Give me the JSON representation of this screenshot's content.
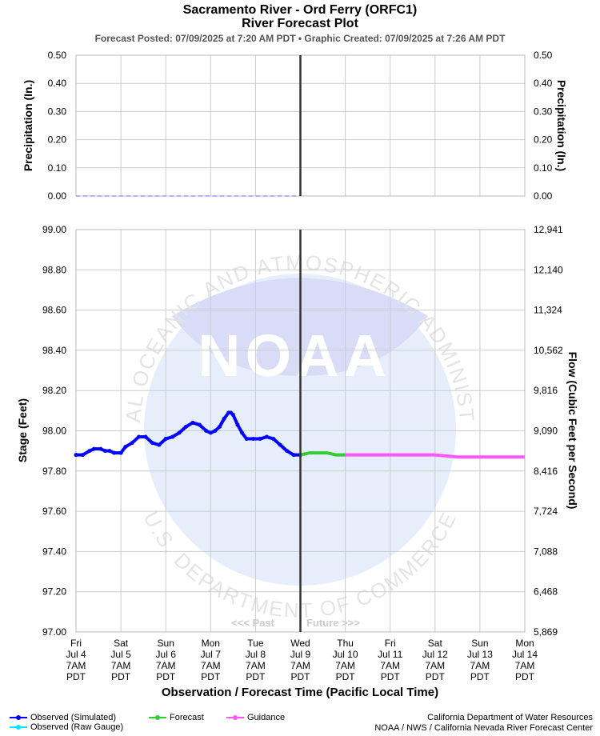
{
  "header": {
    "title": "Sacramento River - Ord Ferry (ORFC1)",
    "subtitle": "River Forecast Plot",
    "posted": "Forecast Posted: 07/09/2025 at 7:20 AM PDT  •  Graphic Created: 07/09/2025 at 7:26 AM PDT"
  },
  "watermark": {
    "label": "NOAA",
    "ring_top": "NATIONAL OCEANIC AND ATMOSPHERIC ADMINISTRATION",
    "ring_bottom": "U.S. DEPARTMENT OF COMMERCE"
  },
  "annotations": {
    "past": "<<< Past",
    "future": "Future >>>"
  },
  "legend": {
    "observed_simulated": "Observed (Simulated)",
    "observed_raw": "Observed (Raw Gauge)",
    "forecast": "Forecast",
    "guidance": "Guidance"
  },
  "credits": {
    "line1": "California Department of Water Resources",
    "line2": "NOAA / NWS / California Nevada River Forecast Center"
  },
  "colors": {
    "observed_simulated": "#0000ff",
    "observed_raw": "#00e5ff",
    "forecast": "#33cc33",
    "guidance": "#ff55ff",
    "now_line": "#333333",
    "grid": "#cccccc",
    "precip": "#9999ff"
  },
  "chart_data": [
    {
      "type": "line",
      "ylabel_left": "Precipitation (In.)",
      "ylabel_right": "Precipitation (In.)",
      "ylim": [
        0,
        0.5
      ],
      "yticks": [
        "0.00",
        "0.10",
        "0.20",
        "0.30",
        "0.40",
        "0.50"
      ],
      "series": [
        {
          "name": "Precipitation",
          "x": [
            0,
            5
          ],
          "values": [
            0,
            0
          ]
        }
      ]
    },
    {
      "type": "line",
      "xlabel": "Observation / Forecast Time (Pacific Local Time)",
      "ylabel_left": "Stage (Feet)",
      "ylabel_right": "Flow (Cubic Feet per Second)",
      "ylim": [
        97.0,
        99.0
      ],
      "xlim": [
        0,
        10
      ],
      "grid": true,
      "now_x": 5,
      "yticks_left": [
        "97.00",
        "97.20",
        "97.40",
        "97.60",
        "97.80",
        "98.00",
        "98.20",
        "98.40",
        "98.60",
        "98.80",
        "99.00"
      ],
      "yticks_right": [
        "5,869",
        "6,468",
        "7,088",
        "7,724",
        "8,416",
        "9,090",
        "9,816",
        "10,562",
        "11,324",
        "12,140",
        "12,941"
      ],
      "xticks": [
        [
          "Fri",
          "Jul 4",
          "7AM",
          "PDT"
        ],
        [
          "Sat",
          "Jul 5",
          "7AM",
          "PDT"
        ],
        [
          "Sun",
          "Jul 6",
          "7AM",
          "PDT"
        ],
        [
          "Mon",
          "Jul 7",
          "7AM",
          "PDT"
        ],
        [
          "Tue",
          "Jul 8",
          "7AM",
          "PDT"
        ],
        [
          "Wed",
          "Jul 9",
          "7AM",
          "PDT"
        ],
        [
          "Thu",
          "Jul 10",
          "7AM",
          "PDT"
        ],
        [
          "Fri",
          "Jul 11",
          "7AM",
          "PDT"
        ],
        [
          "Sat",
          "Jul 12",
          "7AM",
          "PDT"
        ],
        [
          "Sun",
          "Jul 13",
          "7AM",
          "PDT"
        ],
        [
          "Mon",
          "Jul 14",
          "7AM",
          "PDT"
        ]
      ],
      "series": [
        {
          "name": "Observed (Simulated)",
          "x": [
            0,
            0.15,
            0.3,
            0.4,
            0.55,
            0.65,
            0.75,
            0.85,
            1.0,
            1.1,
            1.25,
            1.4,
            1.55,
            1.7,
            1.85,
            2.0,
            2.15,
            2.3,
            2.45,
            2.6,
            2.75,
            2.9,
            3.0,
            3.1,
            3.2,
            3.3,
            3.4,
            3.45,
            3.5,
            3.6,
            3.7,
            3.8,
            3.95,
            4.1,
            4.25,
            4.4,
            4.55,
            4.7,
            4.85,
            5.0
          ],
          "values": [
            97.88,
            97.88,
            97.9,
            97.91,
            97.91,
            97.9,
            97.9,
            97.89,
            97.89,
            97.92,
            97.94,
            97.97,
            97.97,
            97.94,
            97.93,
            97.96,
            97.97,
            97.99,
            98.02,
            98.04,
            98.03,
            98.0,
            97.99,
            98.0,
            98.02,
            98.06,
            98.09,
            98.09,
            98.08,
            98.03,
            97.99,
            97.96,
            97.96,
            97.96,
            97.97,
            97.96,
            97.93,
            97.9,
            97.88,
            97.88
          ]
        },
        {
          "name": "Forecast",
          "x": [
            5.0,
            5.2,
            5.4,
            5.6,
            5.8,
            6.0
          ],
          "values": [
            97.88,
            97.89,
            97.89,
            97.89,
            97.88,
            97.88
          ]
        },
        {
          "name": "Guidance",
          "x": [
            6.0,
            7.0,
            8.0,
            8.5,
            9.0,
            10.0
          ],
          "values": [
            97.88,
            97.88,
            97.88,
            97.87,
            97.87,
            97.87
          ]
        }
      ]
    }
  ]
}
